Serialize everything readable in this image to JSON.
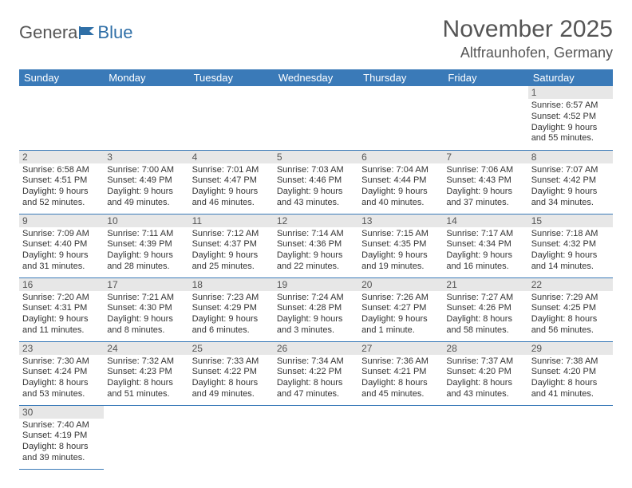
{
  "brand": {
    "part1": "Genera",
    "part2": "Blue"
  },
  "title": "November 2025",
  "location": "Altfraunhofen, Germany",
  "colors": {
    "header_bg": "#3a7ab8",
    "row_border": "#3a7ab8",
    "daynum_bg": "#e7e7e7",
    "text": "#333333",
    "muted": "#555555"
  },
  "weekdays": [
    "Sunday",
    "Monday",
    "Tuesday",
    "Wednesday",
    "Thursday",
    "Friday",
    "Saturday"
  ],
  "weeks": [
    [
      null,
      null,
      null,
      null,
      null,
      null,
      {
        "n": "1",
        "sunrise": "6:57 AM",
        "sunset": "4:52 PM",
        "daylight": "9 hours and 55 minutes."
      }
    ],
    [
      {
        "n": "2",
        "sunrise": "6:58 AM",
        "sunset": "4:51 PM",
        "daylight": "9 hours and 52 minutes."
      },
      {
        "n": "3",
        "sunrise": "7:00 AM",
        "sunset": "4:49 PM",
        "daylight": "9 hours and 49 minutes."
      },
      {
        "n": "4",
        "sunrise": "7:01 AM",
        "sunset": "4:47 PM",
        "daylight": "9 hours and 46 minutes."
      },
      {
        "n": "5",
        "sunrise": "7:03 AM",
        "sunset": "4:46 PM",
        "daylight": "9 hours and 43 minutes."
      },
      {
        "n": "6",
        "sunrise": "7:04 AM",
        "sunset": "4:44 PM",
        "daylight": "9 hours and 40 minutes."
      },
      {
        "n": "7",
        "sunrise": "7:06 AM",
        "sunset": "4:43 PM",
        "daylight": "9 hours and 37 minutes."
      },
      {
        "n": "8",
        "sunrise": "7:07 AM",
        "sunset": "4:42 PM",
        "daylight": "9 hours and 34 minutes."
      }
    ],
    [
      {
        "n": "9",
        "sunrise": "7:09 AM",
        "sunset": "4:40 PM",
        "daylight": "9 hours and 31 minutes."
      },
      {
        "n": "10",
        "sunrise": "7:11 AM",
        "sunset": "4:39 PM",
        "daylight": "9 hours and 28 minutes."
      },
      {
        "n": "11",
        "sunrise": "7:12 AM",
        "sunset": "4:37 PM",
        "daylight": "9 hours and 25 minutes."
      },
      {
        "n": "12",
        "sunrise": "7:14 AM",
        "sunset": "4:36 PM",
        "daylight": "9 hours and 22 minutes."
      },
      {
        "n": "13",
        "sunrise": "7:15 AM",
        "sunset": "4:35 PM",
        "daylight": "9 hours and 19 minutes."
      },
      {
        "n": "14",
        "sunrise": "7:17 AM",
        "sunset": "4:34 PM",
        "daylight": "9 hours and 16 minutes."
      },
      {
        "n": "15",
        "sunrise": "7:18 AM",
        "sunset": "4:32 PM",
        "daylight": "9 hours and 14 minutes."
      }
    ],
    [
      {
        "n": "16",
        "sunrise": "7:20 AM",
        "sunset": "4:31 PM",
        "daylight": "9 hours and 11 minutes."
      },
      {
        "n": "17",
        "sunrise": "7:21 AM",
        "sunset": "4:30 PM",
        "daylight": "9 hours and 8 minutes."
      },
      {
        "n": "18",
        "sunrise": "7:23 AM",
        "sunset": "4:29 PM",
        "daylight": "9 hours and 6 minutes."
      },
      {
        "n": "19",
        "sunrise": "7:24 AM",
        "sunset": "4:28 PM",
        "daylight": "9 hours and 3 minutes."
      },
      {
        "n": "20",
        "sunrise": "7:26 AM",
        "sunset": "4:27 PM",
        "daylight": "9 hours and 1 minute."
      },
      {
        "n": "21",
        "sunrise": "7:27 AM",
        "sunset": "4:26 PM",
        "daylight": "8 hours and 58 minutes."
      },
      {
        "n": "22",
        "sunrise": "7:29 AM",
        "sunset": "4:25 PM",
        "daylight": "8 hours and 56 minutes."
      }
    ],
    [
      {
        "n": "23",
        "sunrise": "7:30 AM",
        "sunset": "4:24 PM",
        "daylight": "8 hours and 53 minutes."
      },
      {
        "n": "24",
        "sunrise": "7:32 AM",
        "sunset": "4:23 PM",
        "daylight": "8 hours and 51 minutes."
      },
      {
        "n": "25",
        "sunrise": "7:33 AM",
        "sunset": "4:22 PM",
        "daylight": "8 hours and 49 minutes."
      },
      {
        "n": "26",
        "sunrise": "7:34 AM",
        "sunset": "4:22 PM",
        "daylight": "8 hours and 47 minutes."
      },
      {
        "n": "27",
        "sunrise": "7:36 AM",
        "sunset": "4:21 PM",
        "daylight": "8 hours and 45 minutes."
      },
      {
        "n": "28",
        "sunrise": "7:37 AM",
        "sunset": "4:20 PM",
        "daylight": "8 hours and 43 minutes."
      },
      {
        "n": "29",
        "sunrise": "7:38 AM",
        "sunset": "4:20 PM",
        "daylight": "8 hours and 41 minutes."
      }
    ],
    [
      {
        "n": "30",
        "sunrise": "7:40 AM",
        "sunset": "4:19 PM",
        "daylight": "8 hours and 39 minutes."
      },
      null,
      null,
      null,
      null,
      null,
      null
    ]
  ],
  "labels": {
    "sunrise": "Sunrise:",
    "sunset": "Sunset:",
    "daylight": "Daylight:"
  }
}
